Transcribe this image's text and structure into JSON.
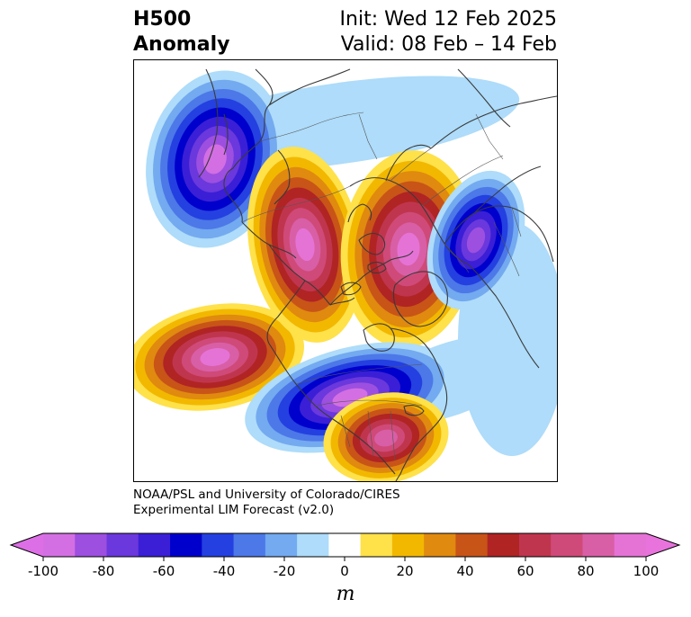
{
  "title": {
    "left_line1": "H500",
    "left_line2": "Anomaly",
    "right_line1": "Init: Wed 12 Feb 2025",
    "right_line2": "Valid: 08 Feb – 14 Feb"
  },
  "credit": {
    "line1": "NOAA/PSL and University of Colorado/CIRES",
    "line2": "Experimental LIM Forecast (v2.0)"
  },
  "colorbar": {
    "unit": "m",
    "ticks": [
      "-100",
      "-80",
      "-60",
      "-40",
      "-20",
      "0",
      "20",
      "40",
      "60",
      "80",
      "100"
    ],
    "levels": [
      -100,
      -90,
      -80,
      -70,
      -60,
      -50,
      -40,
      -30,
      -20,
      -10,
      10,
      20,
      30,
      40,
      50,
      60,
      70,
      80,
      90,
      100
    ],
    "colors": [
      "#d36fe3",
      "#9d4fe0",
      "#6a38dc",
      "#3a1fd6",
      "#0000cc",
      "#2440e0",
      "#4c78e8",
      "#73aaf0",
      "#aedcfa",
      "#ffffff",
      "#ffe14a",
      "#f2b800",
      "#e08a10",
      "#c85418",
      "#b02424",
      "#c0354e",
      "#cf4a78",
      "#d85fa6",
      "#e573d6"
    ],
    "extend_low_color": "#dd6fe6",
    "extend_high_color": "#e873dc"
  },
  "map": {
    "projection": "north-polar-stereographic",
    "field": "500 hPa geopotential height anomaly",
    "anomaly_centers": [
      {
        "region": "Sea of Okhotsk / Western Pacific",
        "sign": "negative",
        "value_m": -100
      },
      {
        "region": "Siberia",
        "sign": "positive",
        "value_m": 100
      },
      {
        "region": "Bering Sea / Alaska",
        "sign": "positive",
        "value_m": 100
      },
      {
        "region": "Eastern Europe / Western Russia",
        "sign": "positive",
        "value_m": 100
      },
      {
        "region": "North Atlantic near Iceland",
        "sign": "negative",
        "value_m": -100
      },
      {
        "region": "Canada / Northern United States",
        "sign": "negative",
        "value_m": -100
      },
      {
        "region": "Southeastern United States / Gulf",
        "sign": "positive",
        "value_m": 90
      }
    ]
  }
}
